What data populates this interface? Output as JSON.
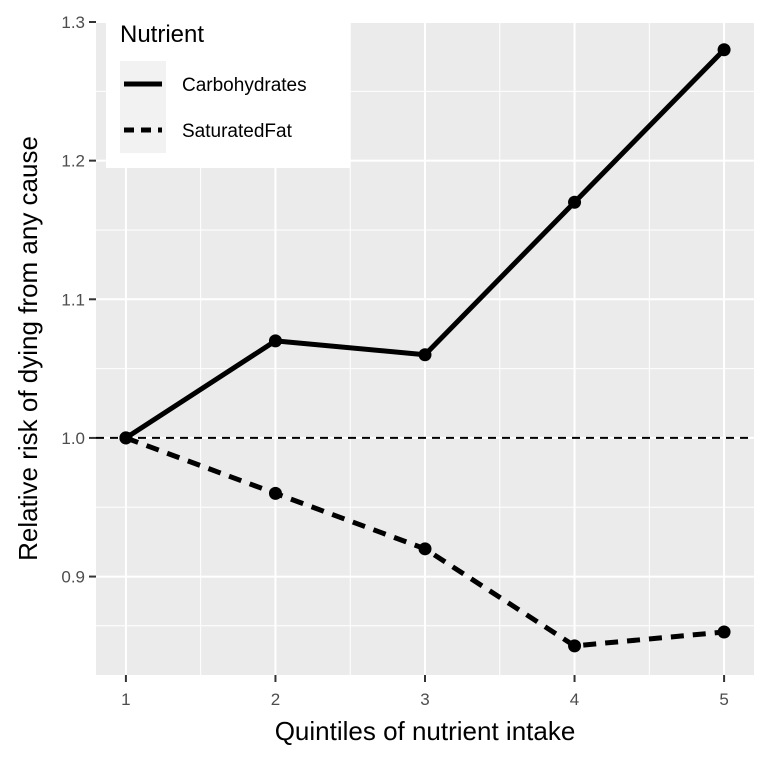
{
  "chart_data": {
    "type": "line",
    "title": "",
    "xlabel": "Quintiles of nutrient intake",
    "ylabel": "Relative risk of dying from any cause",
    "x": [
      1,
      2,
      3,
      4,
      5
    ],
    "xlim": [
      0.8,
      5.2
    ],
    "ylim": [
      0.829,
      1.3
    ],
    "x_ticks": [
      1,
      2,
      3,
      4,
      5
    ],
    "x_tick_labels": [
      "1",
      "2",
      "3",
      "4",
      "5"
    ],
    "y_ticks": [
      0.9,
      1.0,
      1.1,
      1.2,
      1.3
    ],
    "y_tick_labels": [
      "0.9",
      "1.0",
      "1.1",
      "1.2",
      "1.3"
    ],
    "reference_line": {
      "y": 1.0,
      "style": "dashed"
    },
    "legend": {
      "title": "Nutrient",
      "position": "top-left"
    },
    "series": [
      {
        "name": "Carbohydrates",
        "line_style": "solid",
        "values": [
          1.0,
          1.07,
          1.06,
          1.17,
          1.28
        ]
      },
      {
        "name": "SaturatedFat",
        "line_style": "dashed",
        "values": [
          1.0,
          0.96,
          0.92,
          0.85,
          0.86
        ]
      }
    ],
    "grid": true,
    "colors": {
      "panel": "#ebebeb",
      "grid": "#ffffff",
      "line": "#000000"
    }
  }
}
